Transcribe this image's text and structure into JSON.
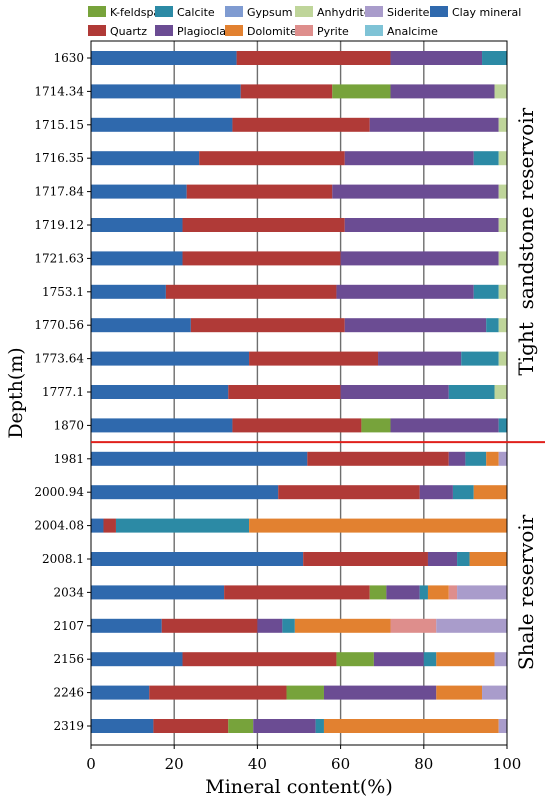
{
  "chart_data": {
    "type": "bar",
    "orientation": "horizontal",
    "stacked": true,
    "xlabel": "Mineral content(%)",
    "ylabel": "Depth(m)",
    "xlim": [
      0,
      100
    ],
    "xticks": [
      "0",
      "20",
      "40",
      "60",
      "80",
      "100"
    ],
    "grid": "vertical",
    "legend_position": "top",
    "categories": [
      "1630",
      "1714.34",
      "1715.15",
      "1716.35",
      "1717.84",
      "1719.12",
      "1721.63",
      "1753.1",
      "1770.56",
      "1773.64",
      "1777.1",
      "1870",
      "1981",
      "2000.94",
      "2004.08",
      "2008.1",
      "2034",
      "2107",
      "2156",
      "2246",
      "2319"
    ],
    "series": [
      {
        "name": "Clay mineral",
        "color": "#2f69ad",
        "values": [
          35,
          36,
          34,
          26,
          23,
          22,
          22,
          18,
          24,
          38,
          33,
          34,
          52,
          45,
          3,
          51,
          32,
          17,
          22,
          14,
          15
        ]
      },
      {
        "name": "Quartz",
        "color": "#b03a37",
        "values": [
          37,
          22,
          33,
          35,
          35,
          39,
          38,
          41,
          37,
          31,
          27,
          31,
          34,
          34,
          3,
          30,
          35,
          23,
          37,
          33,
          18
        ]
      },
      {
        "name": "K-feldspar",
        "color": "#77a33b",
        "values": [
          0,
          14,
          0,
          0,
          0,
          0,
          0,
          0,
          0,
          0,
          0,
          7,
          0,
          0,
          0,
          0,
          4,
          0,
          9,
          9,
          6
        ]
      },
      {
        "name": "Plagioclase",
        "color": "#6b4c93",
        "values": [
          22,
          25,
          31,
          31,
          40,
          37,
          38,
          33,
          34,
          20,
          26,
          26,
          4,
          8,
          0,
          7,
          8,
          6,
          12,
          27,
          15
        ]
      },
      {
        "name": "Calcite",
        "color": "#2c8aa5",
        "values": [
          6,
          0,
          0,
          6,
          0,
          0,
          0,
          6,
          3,
          9,
          11,
          2,
          5,
          5,
          32,
          3,
          2,
          3,
          3,
          0,
          2
        ]
      },
      {
        "name": "Dolomite",
        "color": "#e28130",
        "values": [
          0,
          0,
          0,
          0,
          0,
          0,
          0,
          0,
          0,
          0,
          0,
          0,
          3,
          8,
          62,
          9,
          5,
          23,
          14,
          11,
          42
        ]
      },
      {
        "name": "Gypsum",
        "color": "#7f9bd1",
        "values": [
          0,
          0,
          0,
          0,
          0,
          0,
          0,
          0,
          0,
          0,
          0,
          0,
          0,
          0,
          0,
          0,
          0,
          0,
          0,
          0,
          0
        ]
      },
      {
        "name": "Pyrite",
        "color": "#de8e8c",
        "values": [
          0,
          0,
          0,
          0,
          0,
          0,
          0,
          0,
          0,
          0,
          0,
          0,
          0,
          0,
          0,
          0,
          2,
          11,
          0,
          0,
          0
        ]
      },
      {
        "name": "Anhydrite",
        "color": "#bfd59a",
        "values": [
          0,
          3,
          2,
          2,
          2,
          2,
          2,
          2,
          2,
          2,
          3,
          0,
          0,
          0,
          0,
          0,
          0,
          0,
          0,
          0,
          0
        ]
      },
      {
        "name": "Siderite",
        "color": "#a99ccb",
        "values": [
          0,
          0,
          0,
          0,
          0,
          0,
          0,
          0,
          0,
          0,
          0,
          0,
          2,
          0,
          0,
          0,
          12,
          17,
          3,
          6,
          2
        ]
      },
      {
        "name": "Analcime",
        "color": "#7fc3d6",
        "values": [
          0,
          0,
          0,
          0,
          0,
          0,
          0,
          0,
          0,
          0,
          0,
          0,
          0,
          0,
          0,
          0,
          0,
          0,
          0,
          0,
          0
        ]
      }
    ],
    "legend_rows": [
      [
        "K-feldspar",
        "Calcite",
        "Gypsum",
        "Anhydrite",
        "Siderite",
        "Clay mineral"
      ],
      [
        "Quartz",
        "Plagioclase",
        "Dolomite",
        "Pyrite",
        "Analcime"
      ]
    ],
    "regions": [
      {
        "label": "Tight  sandstone reservoir",
        "from": "1630",
        "to": "1870"
      },
      {
        "label": "Shale reservoir",
        "from": "1981",
        "to": "2319"
      }
    ],
    "divider_color": "#e0201b"
  }
}
